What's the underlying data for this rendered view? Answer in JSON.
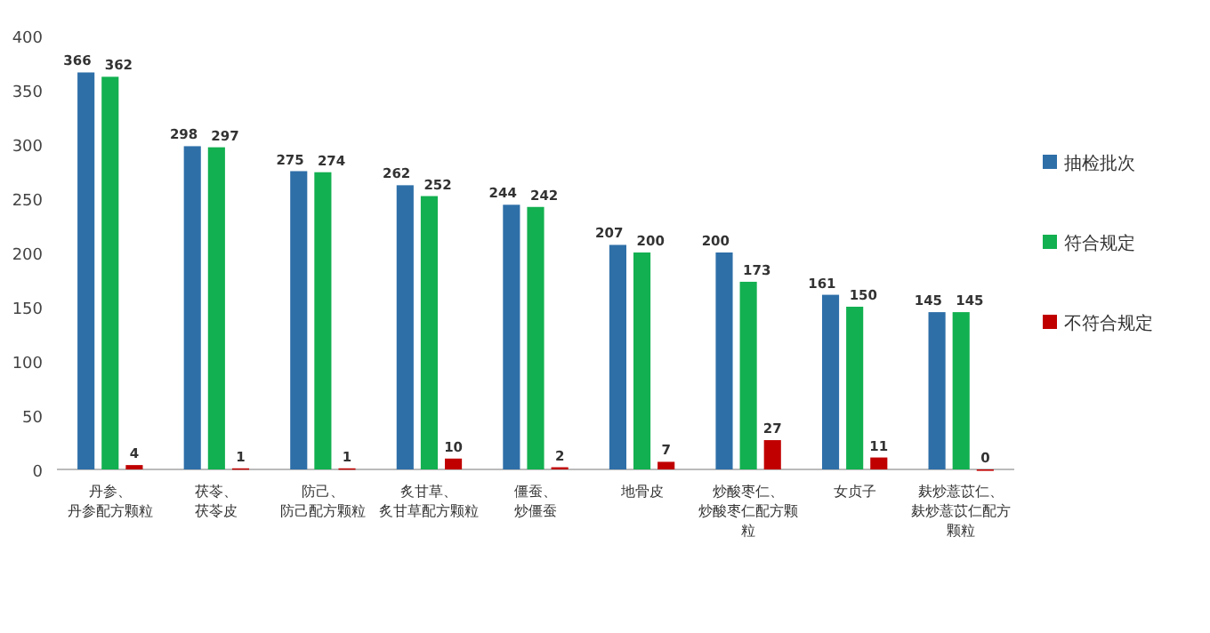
{
  "chart_data": {
    "type": "bar",
    "categories": [
      "丹参、丹参配方颗粒",
      "茯苓、茯苓皮",
      "防己、防己配方颗粒",
      "炙甘草、炙甘草配方颗粒",
      "僵蚕、炒僵蚕",
      "地骨皮",
      "炒酸枣仁、炒酸枣仁配方颗粒",
      "女贞子",
      "麸炒薏苡仁、麸炒薏苡仁配方颗粒"
    ],
    "series": [
      {
        "name": "抽检批次",
        "color": "#2e6fa8",
        "values": [
          366,
          298,
          275,
          262,
          244,
          207,
          200,
          161,
          145
        ]
      },
      {
        "name": "符合规定",
        "color": "#12b050",
        "values": [
          362,
          297,
          274,
          252,
          242,
          200,
          173,
          150,
          145
        ]
      },
      {
        "name": "不符合规定",
        "color": "#c00000",
        "values": [
          4,
          1,
          1,
          10,
          2,
          7,
          27,
          11,
          0
        ]
      }
    ],
    "ylim": [
      0,
      400
    ],
    "yticks": [
      0,
      50,
      100,
      150,
      200,
      250,
      300,
      350,
      400
    ],
    "data_labels": true,
    "grid": false,
    "legend": "right"
  }
}
